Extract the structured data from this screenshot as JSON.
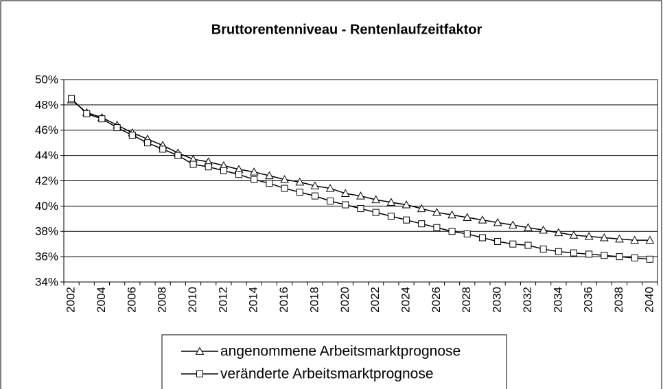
{
  "chart_data": {
    "type": "line",
    "title": "Bruttorentenniveau - Rentenlaufzeitfaktor",
    "categories": [
      "2002",
      null,
      "2004",
      null,
      "2006",
      null,
      "2008",
      null,
      "2010",
      null,
      "2012",
      null,
      "2014",
      null,
      "2016",
      null,
      "2018",
      null,
      "2020",
      null,
      "2022",
      null,
      "2024",
      null,
      "2026",
      null,
      "2028",
      null,
      "2030",
      null,
      "2032",
      null,
      "2034",
      null,
      "2036",
      null,
      "2038",
      null,
      "2040"
    ],
    "series": [
      {
        "name": "angenommene Arbeitsmarktprognose",
        "color": "#000000",
        "marker": "triangle",
        "values": [
          48.4,
          47.4,
          47.0,
          46.4,
          45.8,
          45.3,
          44.8,
          44.2,
          43.7,
          43.5,
          43.2,
          42.9,
          42.7,
          42.4,
          42.1,
          41.9,
          41.6,
          41.4,
          41.0,
          40.8,
          40.5,
          40.3,
          40.1,
          39.8,
          39.5,
          39.3,
          39.1,
          38.9,
          38.7,
          38.5,
          38.3,
          38.1,
          37.9,
          37.7,
          37.6,
          37.5,
          37.4,
          37.3,
          37.3
        ]
      },
      {
        "name": "veränderte Arbeitsmarktprognose",
        "color": "#000000",
        "marker": "square",
        "values": [
          48.5,
          47.3,
          46.9,
          46.2,
          45.6,
          45.0,
          44.5,
          44.0,
          43.3,
          43.1,
          42.8,
          42.5,
          42.1,
          41.8,
          41.4,
          41.1,
          40.8,
          40.4,
          40.1,
          39.8,
          39.5,
          39.2,
          38.9,
          38.6,
          38.3,
          38.0,
          37.8,
          37.5,
          37.2,
          37.0,
          36.9,
          36.6,
          36.4,
          36.3,
          36.2,
          36.1,
          36.0,
          35.9,
          35.8
        ]
      }
    ],
    "ylim": [
      34,
      50
    ],
    "yticks": [
      {
        "value": 34,
        "label": "34%"
      },
      {
        "value": 36,
        "label": "36%"
      },
      {
        "value": 38,
        "label": "38%"
      },
      {
        "value": 40,
        "label": "40%"
      },
      {
        "value": 42,
        "label": "42%"
      },
      {
        "value": 44,
        "label": "44%"
      },
      {
        "value": 46,
        "label": "46%"
      },
      {
        "value": 48,
        "label": "48%"
      },
      {
        "value": 50,
        "label": "50%"
      }
    ],
    "grid": true,
    "legend": "bottom"
  }
}
